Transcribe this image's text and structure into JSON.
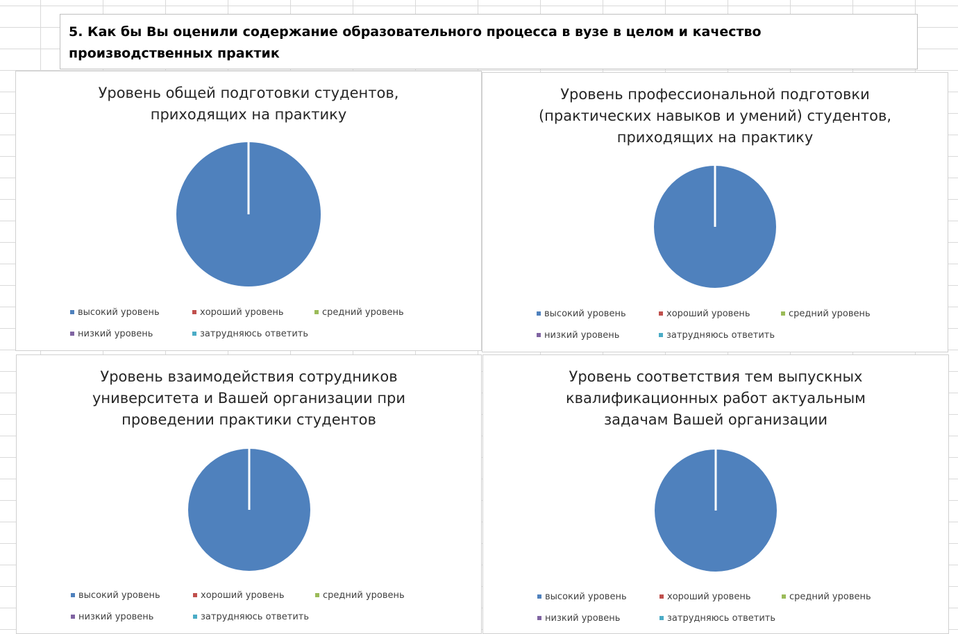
{
  "question": {
    "line1": "5. Как бы Вы оценили содержание образовательного процесса в вузе в целом и качество",
    "line2": "производственных практик"
  },
  "chart_data": [
    {
      "type": "pie",
      "title": "Уровень общей подготовки студентов, приходящих на практику",
      "title_lines": [
        "Уровень общей подготовки студентов,",
        "приходящих на практику"
      ],
      "categories": [
        "высокий уровень",
        "хороший уровень",
        "средний уровень",
        "низкий уровень",
        "затрудняюсь ответить"
      ],
      "values": [
        100,
        0,
        0,
        0,
        0
      ],
      "colors": [
        "#4f81bd",
        "#c0504d",
        "#9bbb59",
        "#8064a2",
        "#4bacc6"
      ],
      "legend": "bottom"
    },
    {
      "type": "pie",
      "title": "Уровень профессиональной подготовки (практических навыков и умений) студентов, приходящих на практику",
      "title_lines": [
        "Уровень профессиональной подготовки",
        "(практических навыков и умений) студентов,",
        "приходящих на практику"
      ],
      "categories": [
        "высокий уровень",
        "хороший уровень",
        "средний уровень",
        "низкий уровень",
        "затрудняюсь ответить"
      ],
      "values": [
        100,
        0,
        0,
        0,
        0
      ],
      "colors": [
        "#4f81bd",
        "#c0504d",
        "#9bbb59",
        "#8064a2",
        "#4bacc6"
      ],
      "legend": "bottom"
    },
    {
      "type": "pie",
      "title": "Уровень взаимодействия сотрудников университета и Вашей организации при проведении практики студентов",
      "title_lines": [
        "Уровень взаимодействия сотрудников",
        "университета и Вашей организации при",
        "проведении практики студентов"
      ],
      "categories": [
        "высокий уровень",
        "хороший уровень",
        "средний уровень",
        "низкий уровень",
        "затрудняюсь ответить"
      ],
      "values": [
        100,
        0,
        0,
        0,
        0
      ],
      "colors": [
        "#4f81bd",
        "#c0504d",
        "#9bbb59",
        "#8064a2",
        "#4bacc6"
      ],
      "legend": "bottom"
    },
    {
      "type": "pie",
      "title": "Уровень соответствия тем выпускных квалификационных работ актуальным задачам Вашей организации",
      "title_lines": [
        "Уровень соответствия тем выпускных",
        "квалификационных работ актуальным",
        "задачам Вашей организации"
      ],
      "categories": [
        "высокий уровень",
        "хороший уровень",
        "средний уровень",
        "низкий уровень",
        "затрудняюсь ответить"
      ],
      "values": [
        100,
        0,
        0,
        0,
        0
      ],
      "colors": [
        "#4f81bd",
        "#c0504d",
        "#9bbb59",
        "#8064a2",
        "#4bacc6"
      ],
      "legend": "bottom"
    }
  ]
}
